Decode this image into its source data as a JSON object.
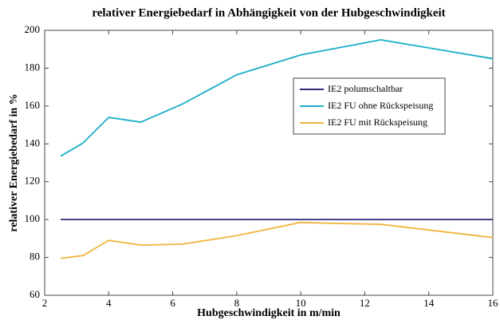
{
  "chart_data": {
    "type": "line",
    "title": "relativer Energiebedarf in Abhängigkeit von der Hubgeschwindigkeit",
    "xlabel": "Hubgeschwindigkeit in m/min",
    "ylabel": "relativer Energiebedarf in %",
    "x": [
      2.5,
      3.2,
      4,
      5,
      6.3,
      8,
      10,
      11,
      12.5,
      16
    ],
    "series": [
      {
        "name": "IE2 polumschaltbar",
        "color": "#2e2a7a",
        "values": [
          100,
          100,
          100,
          100,
          100,
          100,
          100,
          100,
          100,
          100
        ]
      },
      {
        "name": "IE2 FU ohne Rückspeisung",
        "color": "#1aaec7",
        "values": [
          133.5,
          140.5,
          154,
          151.5,
          161,
          176.5,
          187,
          190.2,
          195,
          185
        ]
      },
      {
        "name": "IE2 FU mit Rückspeisung",
        "color": "#f0b43c",
        "values": [
          79.5,
          81,
          89,
          86.5,
          87,
          91.5,
          98.5,
          98,
          97.5,
          90.5
        ]
      }
    ],
    "xlim": [
      2,
      16
    ],
    "xticks": [
      2,
      4,
      6,
      8,
      10,
      12,
      14,
      16
    ],
    "ylim": [
      60,
      200
    ],
    "yticks": [
      60,
      80,
      100,
      120,
      140,
      160,
      180,
      200
    ],
    "grid": false
  }
}
